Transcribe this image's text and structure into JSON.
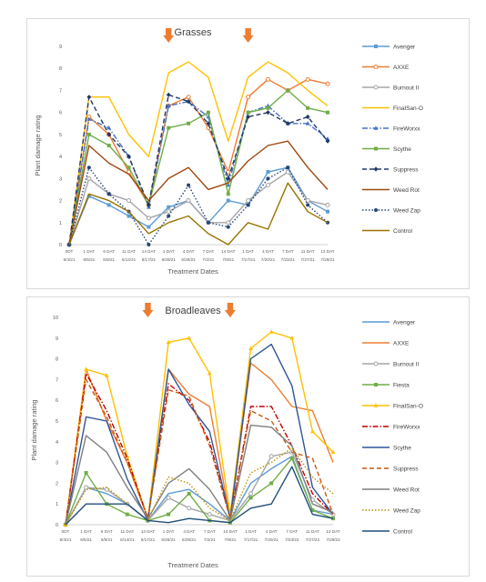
{
  "chart_data": [
    {
      "type": "line",
      "title": "Grasses",
      "xlabel": "Treatment Dates",
      "ylabel": "Plant damage rating",
      "ylim": [
        0,
        9
      ],
      "yticks": [
        0,
        1,
        2,
        3,
        4,
        5,
        6,
        7,
        8,
        9
      ],
      "grid": false,
      "legend_position": "right",
      "categories": [
        [
          "0DT",
          "6/4/21"
        ],
        [
          "1 DAT",
          "6/5/21"
        ],
        [
          "6 DAT",
          "6/9/21"
        ],
        [
          "11 DAT",
          "6/14/21"
        ],
        [
          "14 DAT",
          "6/17/21"
        ],
        [
          "1 DAT",
          "6/26/21"
        ],
        [
          "4 DAT",
          "6/29/21"
        ],
        [
          "7 DAT",
          "7/2/21"
        ],
        [
          "14 DAT",
          "7/9/21"
        ],
        [
          "1 DAT",
          "7/17/21"
        ],
        [
          "4 DAT",
          "7/20/21"
        ],
        [
          "7 DAT",
          "7/23/21"
        ],
        [
          "11 DAT",
          "7/27/21"
        ],
        [
          "13 DAT",
          "7/29/21"
        ]
      ],
      "application_arrows": [
        5,
        9
      ],
      "arrow_color": "#ed7d31",
      "series": [
        {
          "name": "Avenger",
          "color": "#5b9bd5",
          "dash": "solid",
          "marker": "square",
          "values": [
            0,
            2.2,
            1.8,
            1.3,
            0.8,
            1.7,
            2,
            1,
            2,
            1.8,
            3.3,
            3.5,
            2,
            1.5
          ]
        },
        {
          "name": "AXXE",
          "color": "#ed7d31",
          "dash": "solid",
          "marker": "circle-open",
          "values": [
            0,
            5.8,
            5,
            3.3,
            1.8,
            6.3,
            6.7,
            5.3,
            3.3,
            6.7,
            7.5,
            7,
            7.5,
            7.3
          ]
        },
        {
          "name": "Burnout II",
          "color": "#a5a5a5",
          "dash": "solid",
          "marker": "circle-open",
          "values": [
            0,
            3,
            2.3,
            2,
            1.2,
            1.5,
            2,
            1,
            1,
            2,
            2.7,
            3.3,
            2,
            1.8
          ]
        },
        {
          "name": "FinalSan-O",
          "color": "#ffc000",
          "dash": "solid",
          "marker": "none",
          "values": [
            0,
            6.7,
            6.7,
            5,
            4,
            7.8,
            8.3,
            7.6,
            4.7,
            7.6,
            8.3,
            7.8,
            7,
            6.3
          ]
        },
        {
          "name": "FireWorxx",
          "color": "#4472c4",
          "dash": "dashdot",
          "marker": "triangle",
          "values": [
            0,
            5.7,
            5.3,
            4,
            1.7,
            6.3,
            6.5,
            5.8,
            2.7,
            6,
            6.3,
            5.5,
            5.5,
            4.8
          ]
        },
        {
          "name": "Scythe",
          "color": "#70ad47",
          "dash": "solid",
          "marker": "square",
          "values": [
            0,
            5,
            4.5,
            3.5,
            1.8,
            5.3,
            5.5,
            6,
            2.3,
            6,
            6.2,
            7,
            6.2,
            6
          ]
        },
        {
          "name": "Suppress",
          "color": "#1f3864",
          "dash": "dash",
          "marker": "diamond",
          "values": [
            0,
            6.7,
            5,
            4,
            1.8,
            6.8,
            6.5,
            5.5,
            3,
            5.8,
            6,
            5.5,
            5.8,
            4.7
          ]
        },
        {
          "name": "Weed Rot",
          "color": "#9e480e",
          "dash": "solid",
          "marker": "none",
          "values": [
            0,
            4.5,
            3.7,
            3.2,
            2,
            3,
            3.5,
            2.5,
            2.8,
            3.8,
            4.5,
            4.7,
            3.5,
            2.5
          ]
        },
        {
          "name": "Weed Zap",
          "color": "#264478",
          "dash": "dot",
          "marker": "circle",
          "values": [
            0,
            3.5,
            2.3,
            1.5,
            0,
            1.3,
            2.7,
            1,
            0.8,
            1.8,
            3,
            3.5,
            1.8,
            1
          ]
        },
        {
          "name": "Control",
          "color": "#997300",
          "dash": "solid",
          "marker": "none",
          "values": [
            0,
            2.3,
            2,
            1.5,
            0.5,
            1,
            1.3,
            0.5,
            0,
            1,
            0.7,
            2.8,
            1.5,
            1
          ]
        }
      ]
    },
    {
      "type": "line",
      "title": "Broadleaves",
      "xlabel": "Treatment Dates",
      "ylabel": "Plant damage rating",
      "ylim": [
        0,
        10
      ],
      "yticks": [
        0,
        1,
        2,
        3,
        4,
        5,
        6,
        7,
        8,
        9,
        10
      ],
      "grid": false,
      "legend_position": "right",
      "categories": [
        [
          "0DT",
          "6/4/21"
        ],
        [
          "1 DAT",
          "6/5/21"
        ],
        [
          "6 DAT",
          "6/9/21"
        ],
        [
          "11 DAT",
          "6/14/21"
        ],
        [
          "14 DAT",
          "6/17/21"
        ],
        [
          "1 DAT",
          "6/26/21"
        ],
        [
          "4 DAT",
          "6/29/21"
        ],
        [
          "7 DAT",
          "7/2/21"
        ],
        [
          "14 DAT",
          "7/9/21"
        ],
        [
          "1 DAT",
          "7/17/21"
        ],
        [
          "4 DAT",
          "7/20/21"
        ],
        [
          "7 DAT",
          "7/23/22"
        ],
        [
          "11 DAT",
          "7/27/22"
        ],
        [
          "13 DAT",
          "7/29/22"
        ]
      ],
      "application_arrows": [
        4,
        8
      ],
      "arrow_color": "#ed7d31",
      "series": [
        {
          "name": "Avenger",
          "color": "#5b9bd5",
          "dash": "solid",
          "marker": "none",
          "values": [
            0,
            1.8,
            1.5,
            1,
            0.2,
            1.5,
            1.7,
            1,
            0.2,
            2,
            2.7,
            3.3,
            0.7,
            0.5
          ]
        },
        {
          "name": "AXXE",
          "color": "#ed7d31",
          "dash": "solid",
          "marker": "none",
          "values": [
            0,
            7.5,
            5,
            3,
            0.3,
            7.5,
            6.3,
            5.7,
            0.3,
            7.8,
            7,
            5.7,
            5.5,
            3
          ]
        },
        {
          "name": "Burnout II",
          "color": "#a5a5a5",
          "dash": "solid",
          "marker": "circle-open",
          "values": [
            0,
            1.8,
            1.7,
            1,
            0.2,
            1.3,
            0.8,
            0.5,
            0.2,
            1.5,
            3.3,
            3.5,
            1.2,
            0.5
          ]
        },
        {
          "name": "Fiesta",
          "color": "#70ad47",
          "dash": "solid",
          "marker": "square",
          "values": [
            0,
            2.5,
            1,
            0.5,
            0.2,
            0.5,
            1.5,
            0.2,
            0.1,
            1.3,
            2,
            3.2,
            0.7,
            0.3
          ]
        },
        {
          "name": "FinalSan-O",
          "color": "#ffc000",
          "dash": "solid",
          "marker": "triangle",
          "values": [
            0,
            7.5,
            7.2,
            3.3,
            0.3,
            8.8,
            9,
            7.3,
            0.5,
            8.5,
            9.3,
            9,
            4.5,
            3.5
          ]
        },
        {
          "name": "FireWorxx",
          "color": "#c00000",
          "dash": "dashdot",
          "marker": "none",
          "values": [
            0,
            7.3,
            5.5,
            3.2,
            0.3,
            6.8,
            6,
            4,
            0.3,
            5.7,
            5.7,
            3.8,
            1.5,
            0.5
          ]
        },
        {
          "name": "Scythe",
          "color": "#2f5597",
          "dash": "solid",
          "marker": "none",
          "values": [
            0,
            5.2,
            5,
            2.2,
            0.2,
            7.5,
            5.8,
            4.5,
            0.3,
            8,
            8.7,
            6.7,
            1.8,
            0.5
          ]
        },
        {
          "name": "Suppress",
          "color": "#c55a11",
          "dash": "dash",
          "marker": "none",
          "values": [
            0,
            7,
            5.2,
            3,
            0.3,
            6.5,
            6.2,
            3.8,
            0.3,
            5.5,
            5,
            3.5,
            3.2,
            0.5
          ]
        },
        {
          "name": "Weed Rot",
          "color": "#7f7f7f",
          "dash": "solid",
          "marker": "none",
          "values": [
            0,
            4.3,
            3.5,
            1.8,
            0.3,
            2,
            2.7,
            1.7,
            0.2,
            4.8,
            4.7,
            3.8,
            1,
            0.6
          ]
        },
        {
          "name": "Weed Zap",
          "color": "#bf9000",
          "dash": "dot",
          "marker": "none",
          "values": [
            0,
            1.7,
            1.8,
            1,
            0.2,
            2.3,
            2,
            0.8,
            0.2,
            2.5,
            3,
            3.7,
            2.3,
            1.5
          ]
        },
        {
          "name": "Control",
          "color": "#1f4e79",
          "dash": "solid",
          "marker": "none",
          "values": [
            0,
            1,
            1,
            1,
            0.2,
            0.1,
            0.3,
            0.2,
            0.1,
            0.8,
            1,
            2.8,
            0.5,
            0.3
          ]
        }
      ]
    }
  ]
}
